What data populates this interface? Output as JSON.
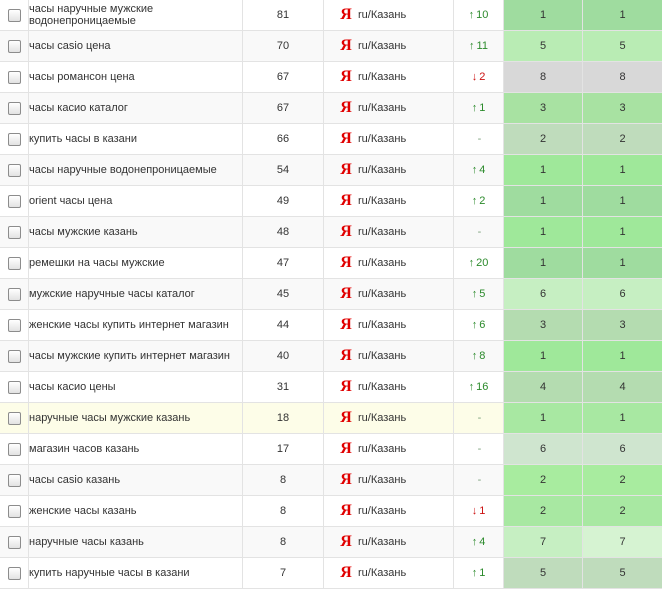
{
  "engine": {
    "logo": "Я",
    "logo_color": "#e00000",
    "region": "ru/Казань"
  },
  "colors": {
    "best_green": "#99dd99",
    "good_green": "#bfe8bf",
    "mid_green": "#cfe5cf",
    "gray": "#d9d9d9",
    "up_arrow": "#2b8a2b",
    "down_arrow": "#cc1111"
  },
  "rows": [
    {
      "keyword": "часы наручные мужские водонепроницаемые",
      "volume": "81",
      "dynamics": {
        "dir": "up",
        "arrow": "↑",
        "value": "10"
      },
      "pos1": "1",
      "pos2": "1",
      "bg1": "#9fdc9f",
      "bg2": "#9fdc9f"
    },
    {
      "keyword": "часы casio цена",
      "volume": "70",
      "dynamics": {
        "dir": "up",
        "arrow": "↑",
        "value": "11"
      },
      "pos1": "5",
      "pos2": "5",
      "bg1": "#b9ecb4",
      "bg2": "#b9ecb4"
    },
    {
      "keyword": "часы романсон цена",
      "volume": "67",
      "dynamics": {
        "dir": "down",
        "arrow": "↓",
        "value": "2"
      },
      "pos1": "8",
      "pos2": "8",
      "bg1": "#d8d8d8",
      "bg2": "#d8d8d8"
    },
    {
      "keyword": "часы касио каталог",
      "volume": "67",
      "dynamics": {
        "dir": "up",
        "arrow": "↑",
        "value": "1"
      },
      "pos1": "3",
      "pos2": "3",
      "bg1": "#a8e2a2",
      "bg2": "#a8e2a2"
    },
    {
      "keyword": "купить часы в казани",
      "volume": "66",
      "dynamics": {
        "dir": "none",
        "arrow": "",
        "value": "-"
      },
      "pos1": "2",
      "pos2": "2",
      "bg1": "#bfdcbc",
      "bg2": "#bfdcbc"
    },
    {
      "keyword": "часы наручные водонепроницаемые",
      "volume": "54",
      "dynamics": {
        "dir": "up",
        "arrow": "↑",
        "value": "4"
      },
      "pos1": "1",
      "pos2": "1",
      "bg1": "#9fe89a",
      "bg2": "#9fe89a"
    },
    {
      "keyword": "orient часы цена",
      "volume": "49",
      "dynamics": {
        "dir": "up",
        "arrow": "↑",
        "value": "2"
      },
      "pos1": "1",
      "pos2": "1",
      "bg1": "#9fdc9f",
      "bg2": "#9fdc9f"
    },
    {
      "keyword": "часы мужские казань",
      "volume": "48",
      "dynamics": {
        "dir": "none",
        "arrow": "",
        "value": "-"
      },
      "pos1": "1",
      "pos2": "1",
      "bg1": "#9fe89a",
      "bg2": "#9fe89a"
    },
    {
      "keyword": "ремешки на часы мужские",
      "volume": "47",
      "dynamics": {
        "dir": "up",
        "arrow": "↑",
        "value": "20"
      },
      "pos1": "1",
      "pos2": "1",
      "bg1": "#9fdc9f",
      "bg2": "#9fdc9f"
    },
    {
      "keyword": "мужские наручные часы каталог",
      "volume": "45",
      "dynamics": {
        "dir": "up",
        "arrow": "↑",
        "value": "5"
      },
      "pos1": "6",
      "pos2": "6",
      "bg1": "#c6efc2",
      "bg2": "#c6efc2"
    },
    {
      "keyword": "женские часы купить интернет магазин",
      "volume": "44",
      "dynamics": {
        "dir": "up",
        "arrow": "↑",
        "value": "6"
      },
      "pos1": "3",
      "pos2": "3",
      "bg1": "#b4dcb0",
      "bg2": "#b4dcb0"
    },
    {
      "keyword": "часы мужские купить интернет магазин",
      "volume": "40",
      "dynamics": {
        "dir": "up",
        "arrow": "↑",
        "value": "8"
      },
      "pos1": "1",
      "pos2": "1",
      "bg1": "#9fe89a",
      "bg2": "#9fe89a"
    },
    {
      "keyword": "часы касио цены",
      "volume": "31",
      "dynamics": {
        "dir": "up",
        "arrow": "↑",
        "value": "16"
      },
      "pos1": "4",
      "pos2": "4",
      "bg1": "#b4dcb0",
      "bg2": "#b4dcb0"
    },
    {
      "keyword": "наручные часы мужские казань",
      "volume": "18",
      "dynamics": {
        "dir": "none",
        "arrow": "",
        "value": "-"
      },
      "pos1": "1",
      "pos2": "1",
      "bg1": "#a8e8a2",
      "bg2": "#a8e8a2",
      "highlighted": true
    },
    {
      "keyword": "магазин часов казань",
      "volume": "17",
      "dynamics": {
        "dir": "none",
        "arrow": "",
        "value": "-"
      },
      "pos1": "6",
      "pos2": "6",
      "bg1": "#cfe5cf",
      "bg2": "#cfe5cf"
    },
    {
      "keyword": "часы casio казань",
      "volume": "8",
      "dynamics": {
        "dir": "none",
        "arrow": "",
        "value": "-"
      },
      "pos1": "2",
      "pos2": "2",
      "bg1": "#a8ec9f",
      "bg2": "#a8ec9f"
    },
    {
      "keyword": "женские часы казань",
      "volume": "8",
      "dynamics": {
        "dir": "down",
        "arrow": "↓",
        "value": "1"
      },
      "pos1": "2",
      "pos2": "2",
      "bg1": "#a8e8a2",
      "bg2": "#a8e8a2"
    },
    {
      "keyword": "наручные часы казань",
      "volume": "8",
      "dynamics": {
        "dir": "up",
        "arrow": "↑",
        "value": "4"
      },
      "pos1": "7",
      "pos2": "7",
      "bg1": "#c6efc2",
      "bg2": "#d6f3d2"
    },
    {
      "keyword": "купить наручные часы в казани",
      "volume": "7",
      "dynamics": {
        "dir": "up",
        "arrow": "↑",
        "value": "1"
      },
      "pos1": "5",
      "pos2": "5",
      "bg1": "#bfdcbc",
      "bg2": "#bfdcbc"
    }
  ]
}
